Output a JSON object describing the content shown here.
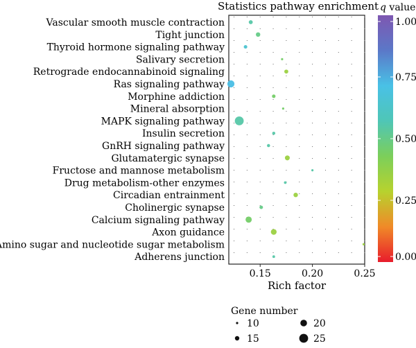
{
  "chart_data": {
    "type": "scatter",
    "title": "Statistics pathway enrichment",
    "xlabel": "Rich factor",
    "ylabel": "",
    "xlim": [
      0.12,
      0.25
    ],
    "x_ticks": [
      0.15,
      0.2,
      0.25
    ],
    "x_tick_labels": [
      "0.15",
      "0.20",
      "0.25"
    ],
    "grid": true,
    "categories": [
      "Vascular smooth muscle contraction",
      "Tight junction",
      "Thyroid hormone signaling pathway",
      "Salivary secretion",
      "Retrograde endocannabinoid signaling",
      "Ras signaling pathway",
      "Morphine addiction",
      "Mineral absorption",
      "MAPK signaling pathway",
      "Insulin secretion",
      "GnRH signaling pathway",
      "Glutamatergic synapse",
      "Fructose and mannose metabolism",
      "Drug metabolism-other enzymes",
      "Circadian entrainment",
      "Cholinergic synapse",
      "Calcium signaling pathway",
      "Axon guidance",
      "Amino sugar and nucleotide sugar metabolism",
      "Adherens junction"
    ],
    "points": [
      {
        "category": "Vascular smooth muscle contraction",
        "rich_factor": 0.141,
        "gene_number": 14,
        "q_value": 0.55
      },
      {
        "category": "Tight junction",
        "rich_factor": 0.148,
        "gene_number": 15,
        "q_value": 0.5
      },
      {
        "category": "Thyroid hormone signaling pathway",
        "rich_factor": 0.136,
        "gene_number": 13,
        "q_value": 0.65
      },
      {
        "category": "Salivary secretion",
        "rich_factor": 0.171,
        "gene_number": 10,
        "q_value": 0.45
      },
      {
        "category": "Retrograde endocannabinoid signaling",
        "rich_factor": 0.175,
        "gene_number": 14,
        "q_value": 0.35
      },
      {
        "category": "Ras signaling pathway",
        "rich_factor": 0.122,
        "gene_number": 21,
        "q_value": 0.72
      },
      {
        "category": "Morphine addiction",
        "rich_factor": 0.163,
        "gene_number": 13,
        "q_value": 0.45
      },
      {
        "category": "Mineral absorption",
        "rich_factor": 0.172,
        "gene_number": 10,
        "q_value": 0.45
      },
      {
        "category": "MAPK signaling pathway",
        "rich_factor": 0.13,
        "gene_number": 25,
        "q_value": 0.55
      },
      {
        "category": "Insulin secretion",
        "rich_factor": 0.163,
        "gene_number": 12,
        "q_value": 0.55
      },
      {
        "category": "GnRH signaling pathway",
        "rich_factor": 0.158,
        "gene_number": 12,
        "q_value": 0.55
      },
      {
        "category": "Glutamatergic synapse",
        "rich_factor": 0.176,
        "gene_number": 16,
        "q_value": 0.35
      },
      {
        "category": "Fructose and mannose metabolism",
        "rich_factor": 0.2,
        "gene_number": 10,
        "q_value": 0.55
      },
      {
        "category": "Drug metabolism-other enzymes",
        "rich_factor": 0.174,
        "gene_number": 11,
        "q_value": 0.55
      },
      {
        "category": "Circadian entrainment",
        "rich_factor": 0.184,
        "gene_number": 15,
        "q_value": 0.35
      },
      {
        "category": "Cholinergic synapse",
        "rich_factor": 0.151,
        "gene_number": 13,
        "q_value": 0.5
      },
      {
        "category": "Calcium signaling pathway",
        "rich_factor": 0.139,
        "gene_number": 19,
        "q_value": 0.45
      },
      {
        "category": "Axon guidance",
        "rich_factor": 0.163,
        "gene_number": 18,
        "q_value": 0.35
      },
      {
        "category": "Amino sugar and nucleotide sugar metabolism",
        "rich_factor": 0.249,
        "gene_number": 10,
        "q_value": 0.35
      },
      {
        "category": "Adherens junction",
        "rich_factor": 0.163,
        "gene_number": 11,
        "q_value": 0.55
      }
    ],
    "size_legend": {
      "title": "Gene number",
      "values": [
        10,
        15,
        20,
        25
      ],
      "labels": [
        "10",
        "15",
        "20",
        "25"
      ]
    },
    "color_legend": {
      "title_italic": "q",
      "title_rest": " value",
      "ticks": [
        0.0,
        0.25,
        0.5,
        0.75,
        1.0
      ],
      "tick_labels": [
        "0.00",
        "0.25",
        "0.50",
        "0.75",
        "1.00"
      ],
      "colormap": [
        "#e81c2c",
        "#f08a28",
        "#b7d22e",
        "#7ccf5a",
        "#4fc6b6",
        "#49c1e6",
        "#5b78c8",
        "#7e57b1"
      ]
    }
  }
}
